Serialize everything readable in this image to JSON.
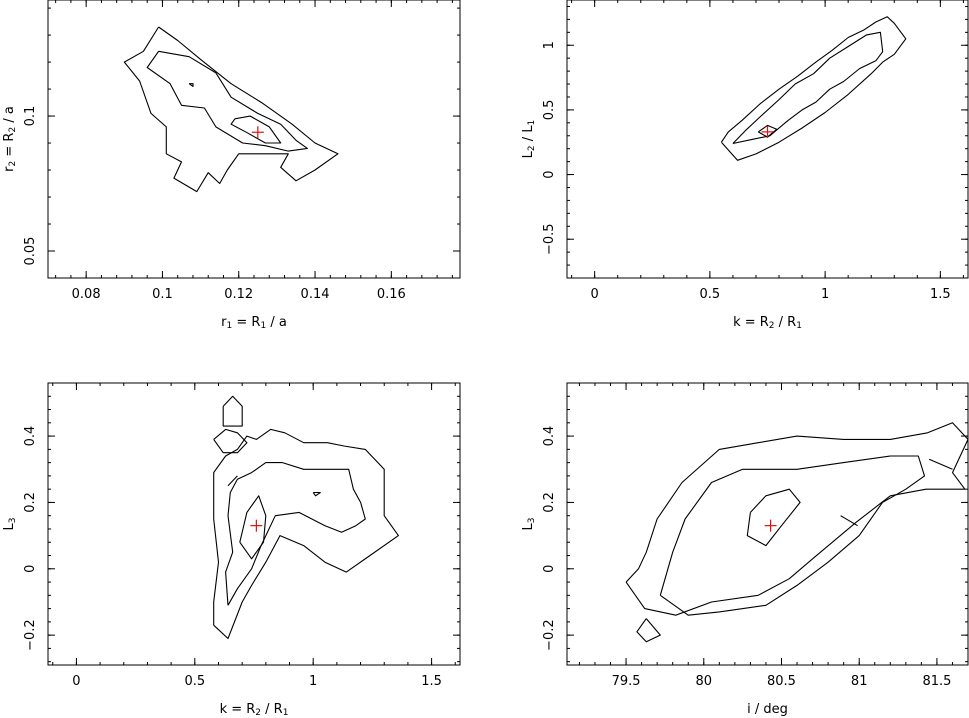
{
  "chart_data": [
    {
      "type": "contour",
      "xlabel": {
        "base": "r",
        "base_sub": "1",
        "rest": " = R",
        "rest_sub": "1",
        "tail": " / a"
      },
      "ylabel": {
        "base": "r",
        "base_sub": "2",
        "rest": " = R",
        "rest_sub": "2",
        "tail": " / a"
      },
      "xlim": [
        0.07,
        0.178
      ],
      "ylim": [
        0.04,
        0.143
      ],
      "xticks": [
        0.08,
        0.1,
        0.12,
        0.14,
        0.16
      ],
      "xtick_labels": [
        "0.08",
        "0.1",
        "0.12",
        "0.14",
        "0.16"
      ],
      "yticks": [
        0.05,
        0.1
      ],
      "ytick_labels": [
        "0.05",
        "0.1"
      ],
      "best_fit": [
        0.125,
        0.094
      ],
      "contours": [
        [
          [
            0.099,
            0.133
          ],
          [
            0.104,
            0.128
          ],
          [
            0.11,
            0.121
          ],
          [
            0.118,
            0.112
          ],
          [
            0.126,
            0.105
          ],
          [
            0.134,
            0.097
          ],
          [
            0.14,
            0.09
          ],
          [
            0.146,
            0.086
          ],
          [
            0.14,
            0.08
          ],
          [
            0.135,
            0.076
          ],
          [
            0.131,
            0.081
          ],
          [
            0.133,
            0.086
          ],
          [
            0.127,
            0.086
          ],
          [
            0.12,
            0.086
          ],
          [
            0.117,
            0.08
          ],
          [
            0.115,
            0.075
          ],
          [
            0.112,
            0.079
          ],
          [
            0.109,
            0.072
          ],
          [
            0.103,
            0.077
          ],
          [
            0.105,
            0.083
          ],
          [
            0.101,
            0.086
          ],
          [
            0.101,
            0.096
          ],
          [
            0.097,
            0.101
          ],
          [
            0.094,
            0.113
          ],
          [
            0.09,
            0.12
          ],
          [
            0.095,
            0.124
          ],
          [
            0.099,
            0.133
          ]
        ],
        [
          [
            0.099,
            0.124
          ],
          [
            0.107,
            0.122
          ],
          [
            0.114,
            0.116
          ],
          [
            0.118,
            0.107
          ],
          [
            0.125,
            0.101
          ],
          [
            0.131,
            0.097
          ],
          [
            0.135,
            0.091
          ],
          [
            0.138,
            0.088
          ],
          [
            0.133,
            0.087
          ],
          [
            0.127,
            0.089
          ],
          [
            0.121,
            0.09
          ],
          [
            0.114,
            0.096
          ],
          [
            0.111,
            0.103
          ],
          [
            0.105,
            0.104
          ],
          [
            0.102,
            0.112
          ],
          [
            0.096,
            0.118
          ],
          [
            0.099,
            0.124
          ]
        ],
        [
          [
            0.119,
            0.099
          ],
          [
            0.123,
            0.1
          ],
          [
            0.128,
            0.096
          ],
          [
            0.131,
            0.09
          ],
          [
            0.127,
            0.09
          ],
          [
            0.122,
            0.094
          ],
          [
            0.118,
            0.097
          ],
          [
            0.119,
            0.099
          ]
        ],
        [
          [
            0.107,
            0.112
          ],
          [
            0.108,
            0.111
          ],
          [
            0.108,
            0.112
          ],
          [
            0.107,
            0.112
          ]
        ]
      ]
    },
    {
      "type": "contour",
      "xlabel": {
        "base": "k = R",
        "base_sub": "2",
        "rest": " / R",
        "rest_sub": "1",
        "tail": ""
      },
      "ylabel": {
        "base": "L",
        "base_sub": "2",
        "rest": " / L",
        "rest_sub": "1",
        "tail": ""
      },
      "xlim": [
        -0.12,
        1.62
      ],
      "ylim": [
        -0.8,
        1.35
      ],
      "xticks": [
        0,
        0.5,
        1,
        1.5
      ],
      "xtick_labels": [
        "0",
        "0.5",
        "1",
        "1.5"
      ],
      "yticks": [
        -0.5,
        0,
        0.5,
        1
      ],
      "ytick_labels": [
        "−0.5",
        "0",
        "0.5",
        "1"
      ],
      "best_fit": [
        0.75,
        0.33
      ],
      "contours": [
        [
          [
            0.55,
            0.25
          ],
          [
            0.62,
            0.11
          ],
          [
            0.7,
            0.16
          ],
          [
            0.8,
            0.25
          ],
          [
            0.9,
            0.36
          ],
          [
            1.0,
            0.48
          ],
          [
            1.1,
            0.62
          ],
          [
            1.2,
            0.78
          ],
          [
            1.25,
            0.87
          ],
          [
            1.3,
            0.93
          ],
          [
            1.35,
            1.05
          ],
          [
            1.3,
            1.17
          ],
          [
            1.27,
            1.22
          ],
          [
            1.22,
            1.18
          ],
          [
            1.17,
            1.12
          ],
          [
            1.1,
            1.06
          ],
          [
            1.03,
            0.96
          ],
          [
            0.96,
            0.87
          ],
          [
            0.88,
            0.76
          ],
          [
            0.8,
            0.66
          ],
          [
            0.72,
            0.55
          ],
          [
            0.64,
            0.42
          ],
          [
            0.58,
            0.33
          ],
          [
            0.55,
            0.25
          ]
        ],
        [
          [
            0.6,
            0.24
          ],
          [
            0.68,
            0.27
          ],
          [
            0.76,
            0.3
          ],
          [
            0.84,
            0.42
          ],
          [
            0.9,
            0.5
          ],
          [
            0.96,
            0.56
          ],
          [
            1.02,
            0.66
          ],
          [
            1.08,
            0.72
          ],
          [
            1.15,
            0.82
          ],
          [
            1.22,
            0.88
          ],
          [
            1.25,
            0.95
          ],
          [
            1.24,
            1.1
          ],
          [
            1.18,
            1.08
          ],
          [
            1.1,
            0.99
          ],
          [
            1.02,
            0.9
          ],
          [
            0.95,
            0.78
          ],
          [
            0.87,
            0.7
          ],
          [
            0.8,
            0.58
          ],
          [
            0.72,
            0.45
          ],
          [
            0.66,
            0.35
          ],
          [
            0.6,
            0.24
          ]
        ],
        [
          [
            0.71,
            0.33
          ],
          [
            0.75,
            0.38
          ],
          [
            0.79,
            0.35
          ],
          [
            0.75,
            0.29
          ],
          [
            0.71,
            0.33
          ]
        ]
      ]
    },
    {
      "type": "contour",
      "xlabel": {
        "base": "k = R",
        "base_sub": "2",
        "rest": " / R",
        "rest_sub": "1",
        "tail": ""
      },
      "ylabel": {
        "base": "L",
        "base_sub": "3",
        "rest": "",
        "rest_sub": "",
        "tail": ""
      },
      "xlim": [
        -0.12,
        1.62
      ],
      "ylim": [
        -0.29,
        0.56
      ],
      "xticks": [
        0,
        0.5,
        1,
        1.5
      ],
      "xtick_labels": [
        "0",
        "0.5",
        "1",
        "1.5"
      ],
      "yticks": [
        -0.2,
        0,
        0.2,
        0.4
      ],
      "ytick_labels": [
        "−0.2",
        "0",
        "0.2",
        "0.4"
      ],
      "best_fit": [
        0.76,
        0.13
      ],
      "contours": [
        [
          [
            0.58,
            -0.17
          ],
          [
            0.64,
            -0.21
          ],
          [
            0.7,
            -0.1
          ],
          [
            0.74,
            -0.05
          ],
          [
            0.8,
            0.02
          ],
          [
            0.86,
            0.1
          ],
          [
            0.96,
            0.07
          ],
          [
            1.05,
            0.02
          ],
          [
            1.14,
            -0.01
          ],
          [
            1.24,
            0.04
          ],
          [
            1.36,
            0.1
          ],
          [
            1.3,
            0.16
          ],
          [
            1.3,
            0.3
          ],
          [
            1.22,
            0.36
          ],
          [
            1.13,
            0.37
          ],
          [
            1.06,
            0.38
          ],
          [
            0.96,
            0.38
          ],
          [
            0.88,
            0.41
          ],
          [
            0.82,
            0.42
          ],
          [
            0.76,
            0.39
          ],
          [
            0.72,
            0.4
          ],
          [
            0.68,
            0.36
          ],
          [
            0.63,
            0.34
          ],
          [
            0.58,
            0.29
          ],
          [
            0.58,
            0.15
          ],
          [
            0.6,
            0.02
          ],
          [
            0.58,
            -0.1
          ],
          [
            0.58,
            -0.17
          ]
        ],
        [
          [
            0.62,
            0.49
          ],
          [
            0.66,
            0.52
          ],
          [
            0.7,
            0.49
          ],
          [
            0.7,
            0.43
          ],
          [
            0.62,
            0.43
          ],
          [
            0.62,
            0.49
          ]
        ],
        [
          [
            0.58,
            0.39
          ],
          [
            0.63,
            0.42
          ],
          [
            0.68,
            0.41
          ],
          [
            0.72,
            0.38
          ],
          [
            0.68,
            0.35
          ],
          [
            0.62,
            0.35
          ],
          [
            0.58,
            0.39
          ]
        ],
        [
          [
            0.64,
            -0.11
          ],
          [
            0.68,
            -0.06
          ],
          [
            0.74,
            0.0
          ],
          [
            0.78,
            0.07
          ],
          [
            0.84,
            0.16
          ],
          [
            0.94,
            0.17
          ],
          [
            1.05,
            0.13
          ],
          [
            1.12,
            0.11
          ],
          [
            1.18,
            0.13
          ],
          [
            1.22,
            0.15
          ],
          [
            1.2,
            0.2
          ],
          [
            1.17,
            0.24
          ],
          [
            1.15,
            0.3
          ],
          [
            1.06,
            0.3
          ],
          [
            0.96,
            0.3
          ],
          [
            0.87,
            0.32
          ],
          [
            0.8,
            0.32
          ],
          [
            0.74,
            0.29
          ],
          [
            0.68,
            0.27
          ],
          [
            0.65,
            0.23
          ],
          [
            0.64,
            0.16
          ],
          [
            0.66,
            0.05
          ],
          [
            0.63,
            -0.01
          ],
          [
            0.64,
            -0.11
          ]
        ],
        [
          [
            0.69,
            0.08
          ],
          [
            0.72,
            0.17
          ],
          [
            0.77,
            0.22
          ],
          [
            0.8,
            0.16
          ],
          [
            0.79,
            0.08
          ],
          [
            0.74,
            0.03
          ],
          [
            0.69,
            0.08
          ]
        ],
        [
          [
            1.0,
            0.23
          ],
          [
            1.03,
            0.23
          ],
          [
            1.01,
            0.22
          ],
          [
            1.0,
            0.23
          ]
        ],
        [
          [
            0.64,
            0.25
          ],
          [
            0.68,
            0.28
          ]
        ]
      ]
    },
    {
      "type": "contour",
      "xlabel": {
        "base": "i / deg",
        "base_sub": "",
        "rest": "",
        "rest_sub": "",
        "tail": ""
      },
      "ylabel": {
        "base": "L",
        "base_sub": "3",
        "rest": "",
        "rest_sub": "",
        "tail": ""
      },
      "xlim": [
        79.12,
        81.7
      ],
      "ylim": [
        -0.29,
        0.56
      ],
      "xticks": [
        79.5,
        80,
        80.5,
        81,
        81.5
      ],
      "xtick_labels": [
        "79.5",
        "80",
        "80.5",
        "81",
        "81.5"
      ],
      "yticks": [
        -0.2,
        0,
        0.2,
        0.4
      ],
      "ytick_labels": [
        "−0.2",
        "0",
        "0.2",
        "0.4"
      ],
      "best_fit": [
        80.43,
        0.13
      ],
      "contours": [
        [
          [
            79.5,
            -0.04
          ],
          [
            79.58,
            0.0
          ],
          [
            79.63,
            0.05
          ],
          [
            79.7,
            0.15
          ],
          [
            79.86,
            0.26
          ],
          [
            80.1,
            0.36
          ],
          [
            80.35,
            0.38
          ],
          [
            80.6,
            0.4
          ],
          [
            80.9,
            0.39
          ],
          [
            81.2,
            0.39
          ],
          [
            81.44,
            0.41
          ],
          [
            81.6,
            0.44
          ],
          [
            81.7,
            0.39
          ],
          [
            81.6,
            0.29
          ],
          [
            81.68,
            0.24
          ],
          [
            81.43,
            0.24
          ],
          [
            81.2,
            0.22
          ],
          [
            80.98,
            0.14
          ],
          [
            80.7,
            0.03
          ],
          [
            80.55,
            -0.03
          ],
          [
            80.35,
            -0.08
          ],
          [
            80.05,
            -0.1
          ],
          [
            79.82,
            -0.14
          ],
          [
            79.62,
            -0.12
          ],
          [
            79.5,
            -0.04
          ]
        ],
        [
          [
            79.63,
            -0.15
          ],
          [
            79.57,
            -0.19
          ],
          [
            79.63,
            -0.22
          ],
          [
            79.72,
            -0.2
          ],
          [
            79.63,
            -0.15
          ]
        ],
        [
          [
            79.72,
            -0.08
          ],
          [
            79.8,
            0.05
          ],
          [
            79.88,
            0.15
          ],
          [
            80.05,
            0.26
          ],
          [
            80.25,
            0.3
          ],
          [
            80.6,
            0.3
          ],
          [
            80.9,
            0.32
          ],
          [
            81.2,
            0.34
          ],
          [
            81.38,
            0.34
          ],
          [
            81.42,
            0.28
          ],
          [
            81.3,
            0.24
          ],
          [
            81.15,
            0.2
          ],
          [
            81.0,
            0.1
          ],
          [
            80.8,
            0.02
          ],
          [
            80.6,
            -0.05
          ],
          [
            80.4,
            -0.11
          ],
          [
            80.1,
            -0.13
          ],
          [
            79.9,
            -0.14
          ],
          [
            79.72,
            -0.08
          ]
        ],
        [
          [
            80.3,
            0.17
          ],
          [
            80.4,
            0.22
          ],
          [
            80.55,
            0.24
          ],
          [
            80.62,
            0.2
          ],
          [
            80.5,
            0.13
          ],
          [
            80.4,
            0.07
          ],
          [
            80.28,
            0.1
          ],
          [
            80.3,
            0.17
          ]
        ],
        [
          [
            81.45,
            0.33
          ],
          [
            81.6,
            0.3
          ]
        ],
        [
          [
            80.88,
            0.16
          ],
          [
            80.99,
            0.13
          ]
        ]
      ]
    }
  ]
}
